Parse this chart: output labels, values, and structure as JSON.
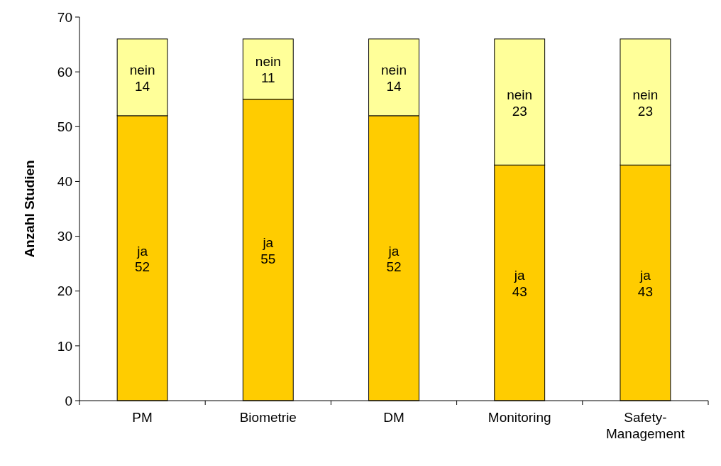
{
  "chart_data": {
    "type": "bar",
    "stacked": true,
    "ylabel": "Anzahl Studien",
    "categories": [
      "PM",
      "Biometrie",
      "DM",
      "Monitoring",
      "Safety-Management"
    ],
    "series": [
      {
        "name": "ja",
        "color": "#ffcc00",
        "values": [
          52,
          55,
          52,
          43,
          43
        ]
      },
      {
        "name": "nein",
        "color": "#ffff99",
        "values": [
          14,
          11,
          14,
          23,
          23
        ]
      }
    ],
    "ylim": [
      0,
      70
    ],
    "yticks": [
      0,
      10,
      20,
      30,
      40,
      50,
      60,
      70
    ],
    "data_labels": true
  }
}
